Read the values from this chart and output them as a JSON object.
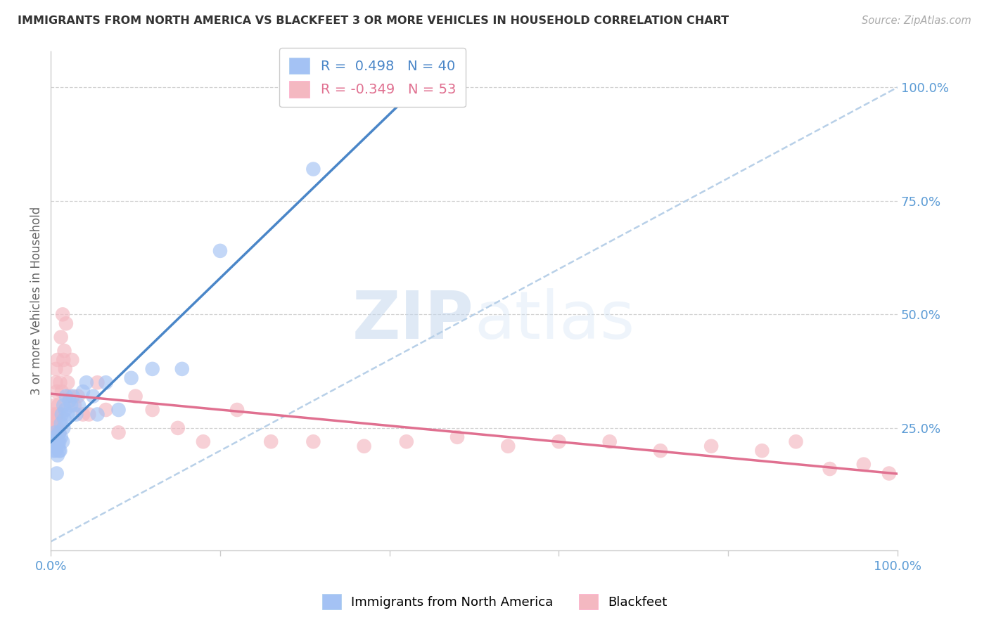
{
  "title": "IMMIGRANTS FROM NORTH AMERICA VS BLACKFEET 3 OR MORE VEHICLES IN HOUSEHOLD CORRELATION CHART",
  "source": "Source: ZipAtlas.com",
  "ylabel": "3 or more Vehicles in Household",
  "xlim": [
    0.0,
    1.0
  ],
  "ylim": [
    -0.02,
    1.08
  ],
  "blue_r": 0.498,
  "blue_n": 40,
  "pink_r": -0.349,
  "pink_n": 53,
  "blue_color": "#a4c2f4",
  "pink_color": "#f4b8c1",
  "blue_line_color": "#4a86c8",
  "pink_line_color": "#e07090",
  "dashed_line_color": "#b8d0e8",
  "grid_color": "#cccccc",
  "background_color": "#ffffff",
  "blue_scatter_x": [
    0.002,
    0.003,
    0.004,
    0.005,
    0.005,
    0.006,
    0.007,
    0.008,
    0.008,
    0.009,
    0.01,
    0.01,
    0.01,
    0.011,
    0.012,
    0.012,
    0.013,
    0.014,
    0.015,
    0.015,
    0.016,
    0.017,
    0.018,
    0.02,
    0.022,
    0.024,
    0.026,
    0.03,
    0.033,
    0.038,
    0.042,
    0.05,
    0.055,
    0.065,
    0.08,
    0.095,
    0.12,
    0.155,
    0.2,
    0.31
  ],
  "blue_scatter_y": [
    0.22,
    0.2,
    0.21,
    0.23,
    0.24,
    0.2,
    0.15,
    0.19,
    0.22,
    0.21,
    0.2,
    0.22,
    0.24,
    0.2,
    0.23,
    0.26,
    0.28,
    0.22,
    0.25,
    0.3,
    0.27,
    0.29,
    0.32,
    0.28,
    0.31,
    0.3,
    0.32,
    0.28,
    0.3,
    0.33,
    0.35,
    0.32,
    0.28,
    0.35,
    0.29,
    0.36,
    0.38,
    0.38,
    0.64,
    0.82
  ],
  "pink_scatter_x": [
    0.001,
    0.002,
    0.003,
    0.004,
    0.005,
    0.005,
    0.006,
    0.006,
    0.007,
    0.007,
    0.008,
    0.008,
    0.009,
    0.01,
    0.01,
    0.011,
    0.012,
    0.013,
    0.014,
    0.015,
    0.016,
    0.017,
    0.018,
    0.02,
    0.022,
    0.025,
    0.028,
    0.032,
    0.038,
    0.045,
    0.055,
    0.065,
    0.08,
    0.1,
    0.12,
    0.15,
    0.18,
    0.22,
    0.26,
    0.31,
    0.37,
    0.42,
    0.48,
    0.54,
    0.6,
    0.66,
    0.72,
    0.78,
    0.84,
    0.88,
    0.92,
    0.96,
    0.99
  ],
  "pink_scatter_y": [
    0.25,
    0.27,
    0.28,
    0.26,
    0.3,
    0.25,
    0.35,
    0.38,
    0.28,
    0.33,
    0.25,
    0.4,
    0.3,
    0.24,
    0.28,
    0.35,
    0.45,
    0.33,
    0.5,
    0.4,
    0.42,
    0.38,
    0.48,
    0.35,
    0.32,
    0.4,
    0.3,
    0.32,
    0.28,
    0.28,
    0.35,
    0.29,
    0.24,
    0.32,
    0.29,
    0.25,
    0.22,
    0.29,
    0.22,
    0.22,
    0.21,
    0.22,
    0.23,
    0.21,
    0.22,
    0.22,
    0.2,
    0.21,
    0.2,
    0.22,
    0.16,
    0.17,
    0.15
  ],
  "watermark_zip": "ZIP",
  "watermark_atlas": "atlas",
  "legend_title_blue": "Immigrants from North America",
  "legend_title_pink": "Blackfeet"
}
